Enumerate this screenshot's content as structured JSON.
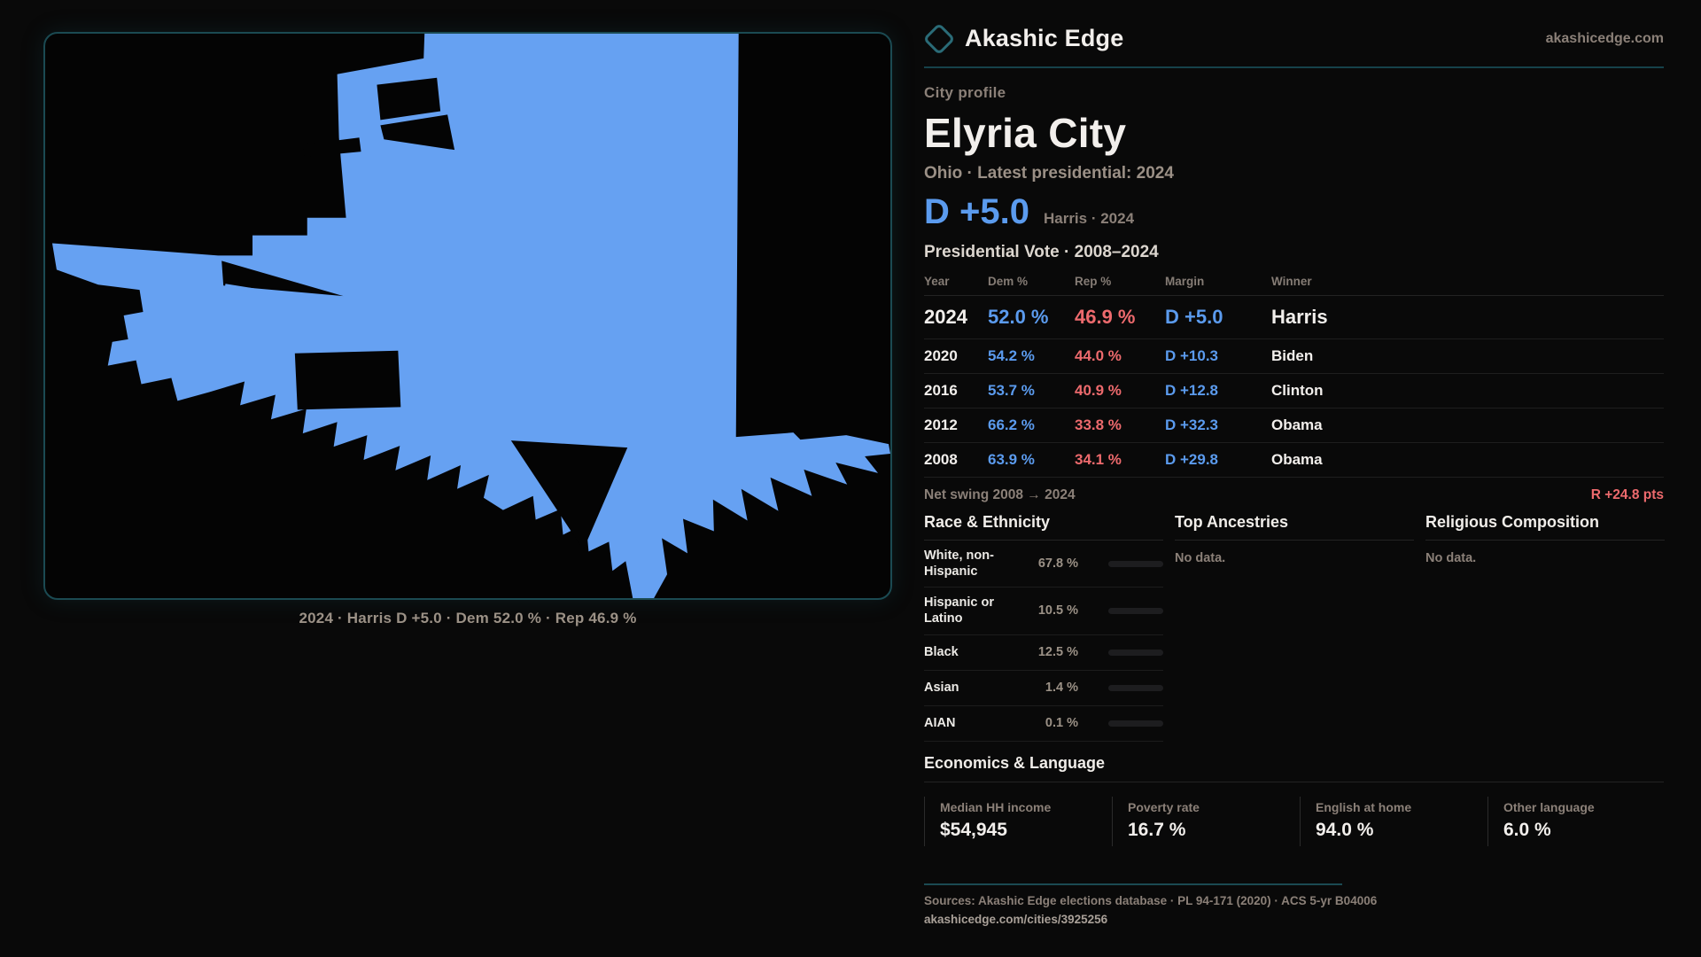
{
  "brand": {
    "name": "Akashic Edge",
    "domain_link": "akashicedge.com"
  },
  "profile": {
    "kicker": "City profile",
    "city": "Elyria City",
    "subtitle": "Ohio · Latest presidential: 2024",
    "headline_margin": "D +5.0",
    "headline_context": "Harris · 2024"
  },
  "map": {
    "caption": "2024 · Harris D +5.0 · Dem 52.0 % · Rep 46.9 %",
    "fill_color": "#66a1f2"
  },
  "vote_table": {
    "title": "Presidential Vote · 2008–2024",
    "columns": [
      "Year",
      "Dem %",
      "Rep %",
      "Margin",
      "Winner"
    ],
    "rows": [
      {
        "year": "2024",
        "dem": "52.0 %",
        "rep": "46.9 %",
        "margin": "D +5.0",
        "winner": "Harris"
      },
      {
        "year": "2020",
        "dem": "54.2 %",
        "rep": "44.0 %",
        "margin": "D +10.3",
        "winner": "Biden"
      },
      {
        "year": "2016",
        "dem": "53.7 %",
        "rep": "40.9 %",
        "margin": "D +12.8",
        "winner": "Clinton"
      },
      {
        "year": "2012",
        "dem": "66.2 %",
        "rep": "33.8 %",
        "margin": "D +32.3",
        "winner": "Obama"
      },
      {
        "year": "2008",
        "dem": "63.9 %",
        "rep": "34.1 %",
        "margin": "D +29.8",
        "winner": "Obama"
      }
    ]
  },
  "net_swing": {
    "label": "Net swing 2008 → 2024",
    "value": "R +24.8 pts"
  },
  "race_ethnicity": {
    "title": "Race & Ethnicity",
    "rows": [
      {
        "label": "White, non-Hispanic",
        "value": "67.8 %",
        "pct": 67.8,
        "color": "#94a8c4"
      },
      {
        "label": "Hispanic or Latino",
        "value": "10.5 %",
        "pct": 10.5,
        "color": "#e0951e"
      },
      {
        "label": "Black",
        "value": "12.5 %",
        "pct": 12.5,
        "color": "#9b8df0"
      },
      {
        "label": "Asian",
        "value": "1.4 %",
        "pct": 1.4,
        "color": "#2fbf8f"
      },
      {
        "label": "AIAN",
        "value": "0.1 %",
        "pct": 0.1,
        "color": "#555555"
      }
    ]
  },
  "top_ancestries": {
    "title": "Top Ancestries",
    "empty": "No data."
  },
  "religion": {
    "title": "Religious Composition",
    "empty": "No data."
  },
  "economics": {
    "title": "Economics & Language",
    "stats": [
      {
        "label": "Median HH income",
        "value": "$54,945"
      },
      {
        "label": "Poverty rate",
        "value": "16.7 %"
      },
      {
        "label": "English at home",
        "value": "94.0 %"
      },
      {
        "label": "Other language",
        "value": "6.0 %"
      }
    ]
  },
  "footer": {
    "sources": "Sources: Akashic Edge elections database · PL 94-171 (2020) · ACS 5-yr B04006",
    "permalink": "akashicedge.com/cities/3925256"
  }
}
